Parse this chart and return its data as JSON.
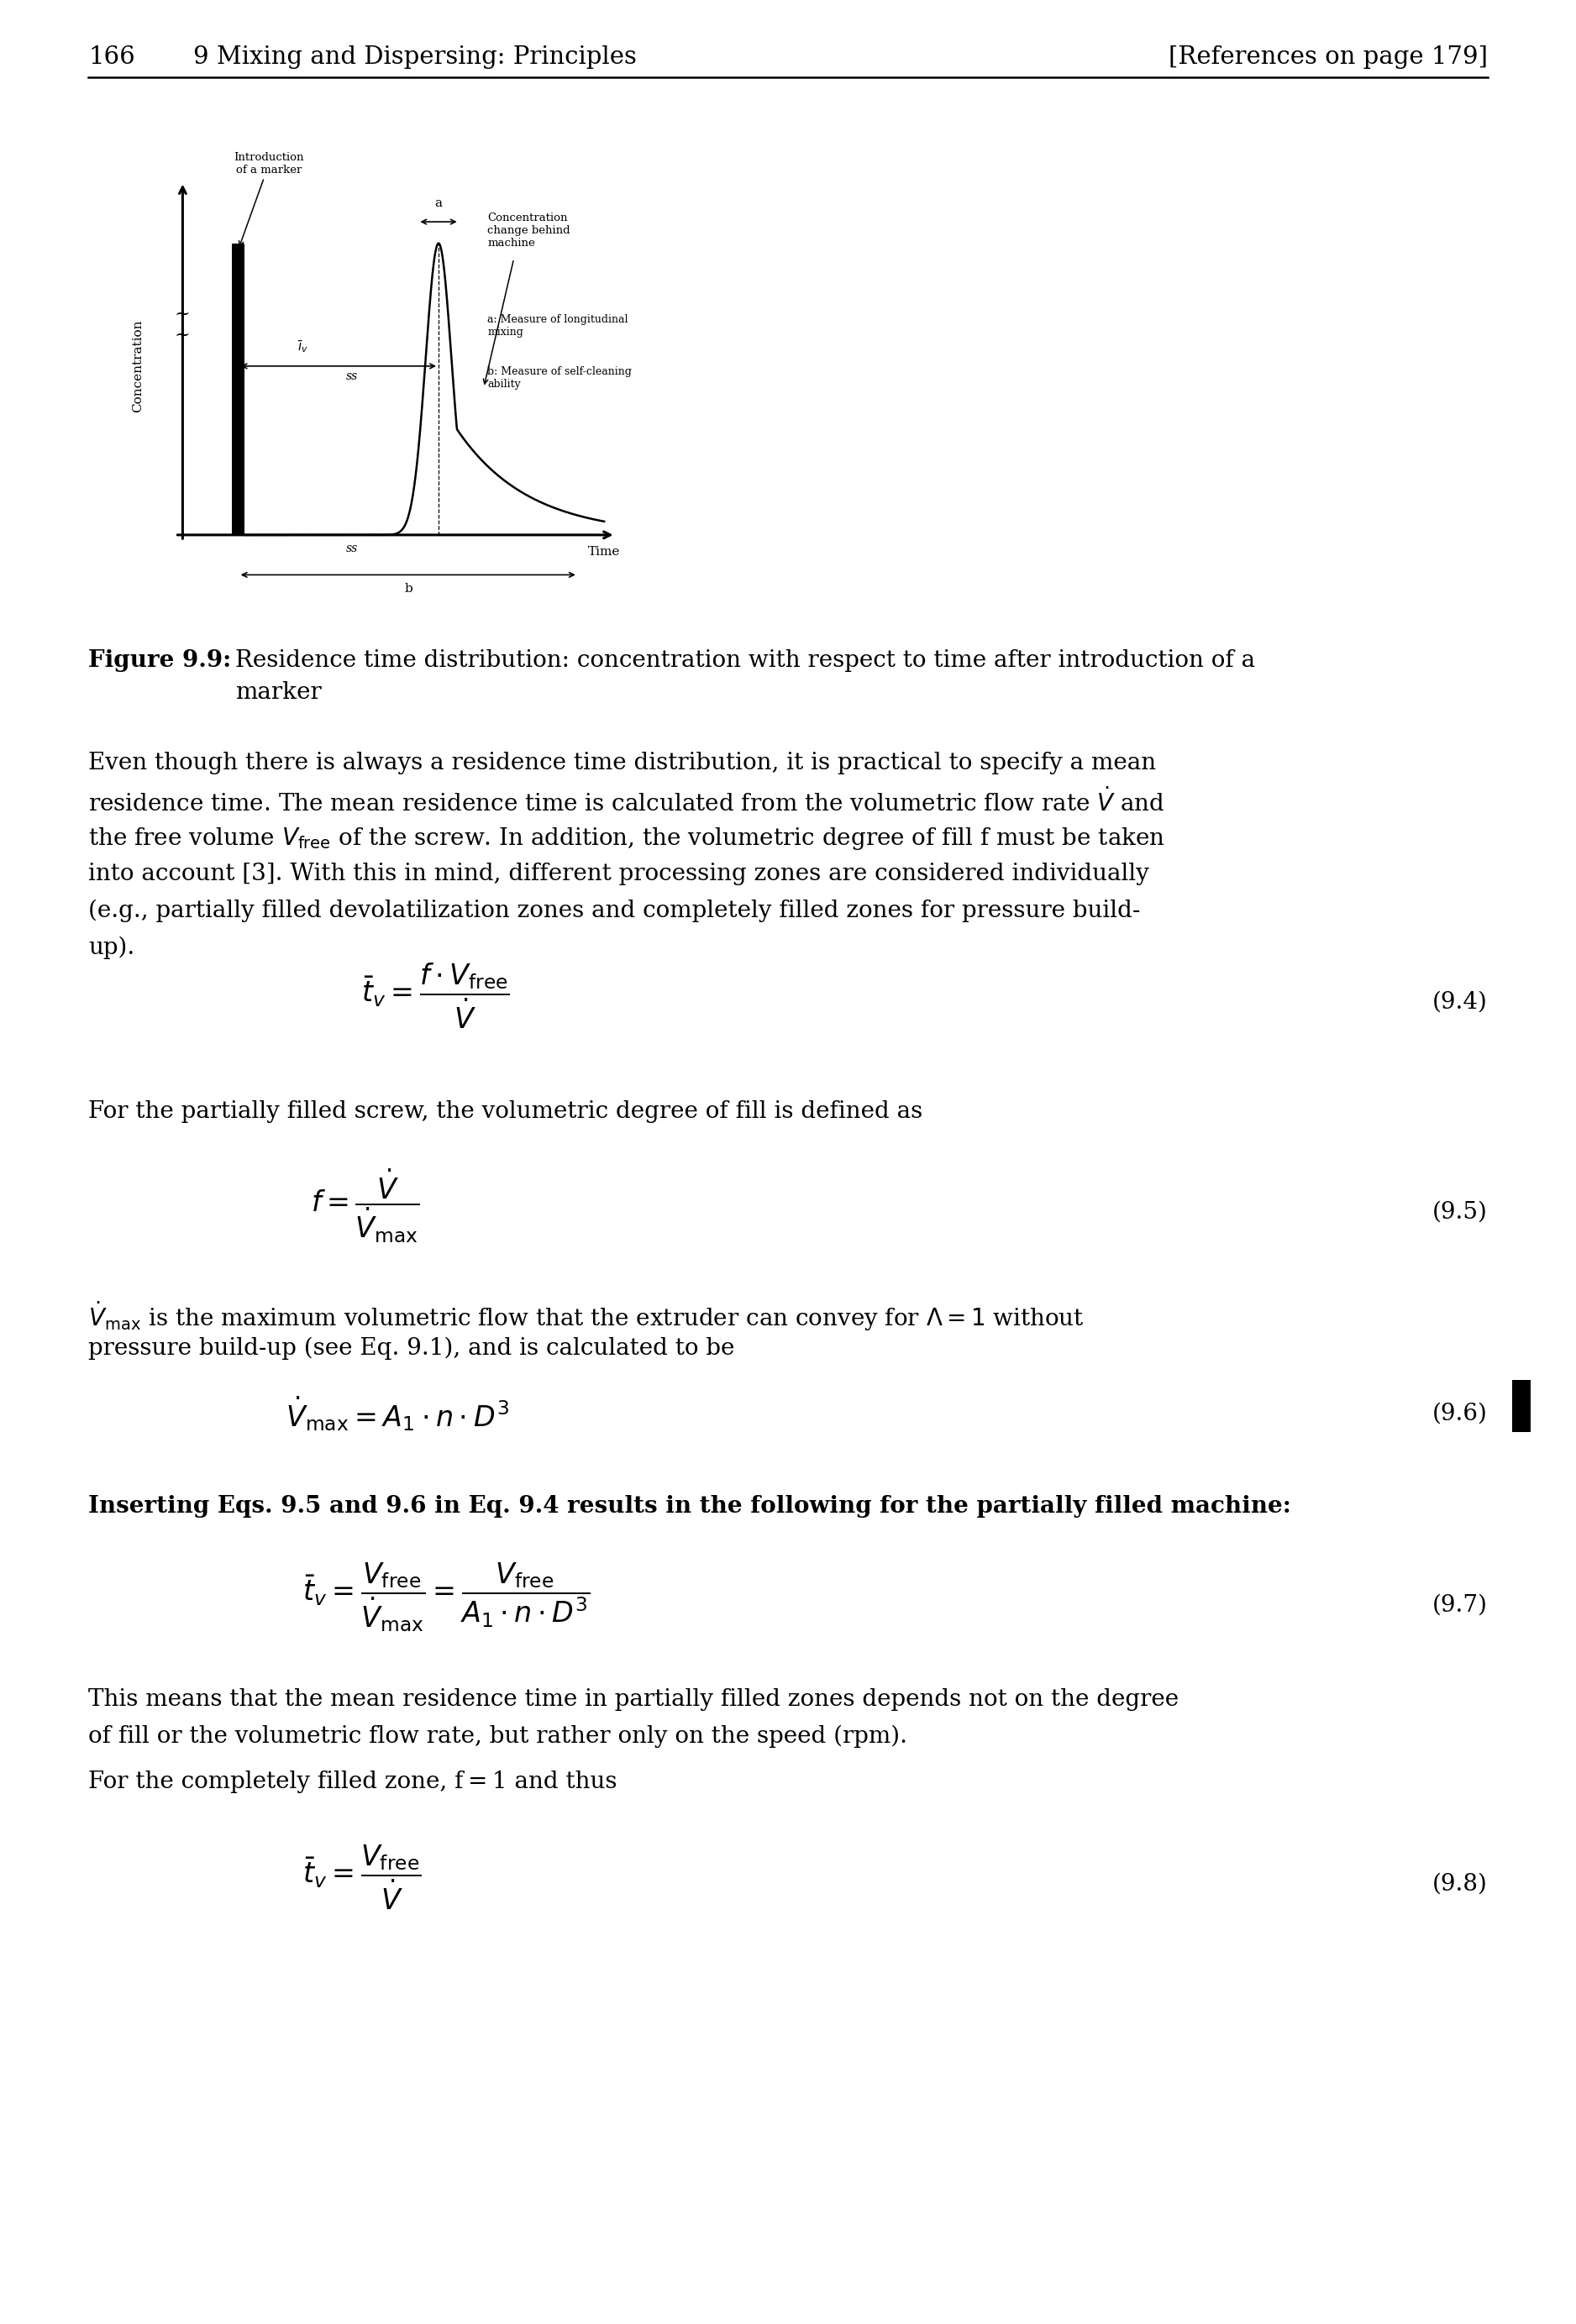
{
  "page_number": "166",
  "chapter_header": "9 Mixing and Dispersing: Principles",
  "right_header": "[References on page 179]",
  "figure_label": "Figure 9.9:",
  "figure_caption_line1": "Residence time distribution: concentration with respect to time after introduction of a",
  "figure_caption_line2": "marker",
  "diagram_ylabel": "Concentration",
  "diagram_xlabel_time": "Time",
  "eq94_label": "(9.4)",
  "eq95_intro": "For the partially filled screw, the volumetric degree of fill is defined as",
  "eq95_label": "(9.5)",
  "eq96_label": "(9.6)",
  "eq97_intro": "Inserting Eqs. 9.5 and 9.6 in Eq. 9.4 results in the following for the partially filled machine:",
  "eq97_label": "(9.7)",
  "eq98_label": "(9.8)",
  "background_color": "#ffffff",
  "text_color": "#000000",
  "p1_lines": [
    "Even though there is always a residence time distribution, it is practical to specify a mean",
    "residence time. The mean residence time is calculated from the volumetric flow rate $\\dot{V}$ and",
    "the free volume $V_{\\mathrm{free}}$ of the screw. In addition, the volumetric degree of fill f must be taken",
    "into account [3]. With this in mind, different processing zones are considered individually",
    "(e.g., partially filled devolatilization zones and completely filled zones for pressure build-",
    "up)."
  ],
  "p3_lines": [
    "$\\dot{V}_{\\mathrm{max}}$ is the maximum volumetric flow that the extruder can convey for $\\Lambda = 1$ without",
    "pressure build-up (see Eq. 9.1), and is calculated to be"
  ],
  "p5_lines": [
    "This means that the mean residence time in partially filled zones depends not on the degree",
    "of fill or the volumetric flow rate, but rather only on the speed (rpm)."
  ],
  "p6": "For the completely filled zone, f = 1 and thus"
}
